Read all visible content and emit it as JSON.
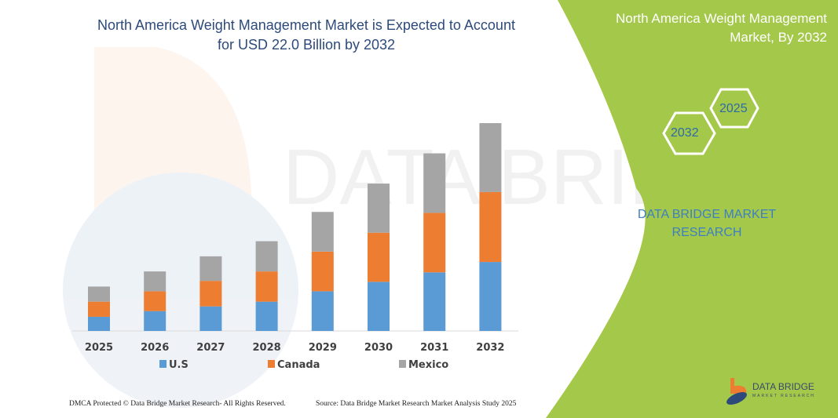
{
  "title": "North America Weight Management Market is Expected to Account for USD 22.0 Billion by 2032",
  "side_panel": {
    "title": "North America Weight Management Market, By 2032",
    "hex_left": "2032",
    "hex_right": "2025",
    "brand": "DATA BRIDGE MARKET RESEARCH"
  },
  "footer": {
    "copyright": "DMCA Protected © Data Bridge Market Research- All Rights Reserved.",
    "source": "Source: Data Bridge Market Research Market Analysis Study 2025"
  },
  "logo": {
    "name": "DATA BRIDGE",
    "sub": "MARKET RESEARCH"
  },
  "watermark": "DATA BRIDGE MARKET RESEARCH",
  "colors": {
    "us": "#5b9bd5",
    "canada": "#ed7d31",
    "mexico": "#a5a5a5",
    "panel": "#a4c84a",
    "title": "#2d4a7a"
  },
  "chart_data": {
    "type": "bar",
    "stacked": true,
    "categories": [
      "2025",
      "2026",
      "2027",
      "2028",
      "2029",
      "2030",
      "2031",
      "2032"
    ],
    "series": [
      {
        "name": "U.S",
        "values": [
          1.5,
          2.1,
          2.6,
          3.1,
          4.2,
          5.2,
          6.2,
          7.3
        ]
      },
      {
        "name": "Canada",
        "values": [
          1.6,
          2.1,
          2.7,
          3.2,
          4.2,
          5.2,
          6.3,
          7.4
        ]
      },
      {
        "name": "Mexico",
        "values": [
          1.6,
          2.1,
          2.6,
          3.2,
          4.2,
          5.2,
          6.3,
          7.3
        ]
      }
    ],
    "ylim": [
      0,
      22.0
    ],
    "grid": false,
    "legend": "bottom"
  }
}
